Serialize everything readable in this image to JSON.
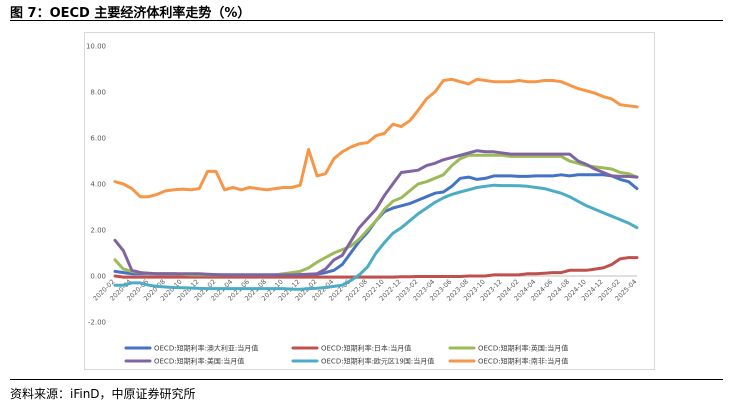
{
  "figure": {
    "title": "图 7：OECD 主要经济体利率走势（%）",
    "source": "资料来源：iFinD，中原证券研究所"
  },
  "chart_data": {
    "type": "line",
    "title": "",
    "xlabel": "",
    "ylabel": "",
    "ylim": [
      -2,
      10
    ],
    "yticks": [
      "-2.00",
      "0.00",
      "2.00",
      "4.00",
      "6.00",
      "8.00",
      "10.00"
    ],
    "grid": false,
    "legend_position": "bottom",
    "x": [
      "2020-02",
      "2020-03",
      "2020-04",
      "2020-05",
      "2020-06",
      "2020-07",
      "2020-08",
      "2020-09",
      "2020-10",
      "2020-11",
      "2020-12",
      "2021-01",
      "2021-02",
      "2021-03",
      "2021-04",
      "2021-05",
      "2021-06",
      "2021-07",
      "2021-08",
      "2021-09",
      "2021-10",
      "2021-11",
      "2021-12",
      "2022-01",
      "2022-02",
      "2022-03",
      "2022-04",
      "2022-05",
      "2022-06",
      "2022-07",
      "2022-08",
      "2022-09",
      "2022-10",
      "2022-11",
      "2022-12",
      "2023-01",
      "2023-02",
      "2023-03",
      "2023-04",
      "2023-05",
      "2023-06",
      "2023-07",
      "2023-08",
      "2023-09",
      "2023-10",
      "2023-11",
      "2023-12",
      "2024-01",
      "2024-02",
      "2024-03",
      "2024-04",
      "2024-05",
      "2024-06",
      "2024-07",
      "2024-08",
      "2024-09",
      "2024-10",
      "2024-11",
      "2024-12",
      "2025-01",
      "2025-02",
      "2025-03",
      "2025-04"
    ],
    "xtick_labels": [
      "2020-02",
      "2020-04",
      "2020-06",
      "2020-08",
      "2020-10",
      "2020-12",
      "2021-02",
      "2021-04",
      "2021-06",
      "2021-08",
      "2021-10",
      "2021-12",
      "2022-02",
      "2022-04",
      "2022-06",
      "2022-08",
      "2022-10",
      "2022-12",
      "2023-02",
      "2023-04",
      "2023-06",
      "2023-08",
      "2023-10",
      "2023-12",
      "2024-02",
      "2024-04",
      "2024-06",
      "2024-08",
      "2024-10",
      "2024-12",
      "2025-02",
      "2025-04"
    ],
    "series": [
      {
        "name": "OECD:短期利率:澳大利亚:当月值",
        "color": "#4472C4",
        "values": [
          0.2,
          0.15,
          0.1,
          0.1,
          0.1,
          0.1,
          0.1,
          0.1,
          0.08,
          0.06,
          0.05,
          0.05,
          0.05,
          0.05,
          0.05,
          0.05,
          0.05,
          0.05,
          0.05,
          0.05,
          0.05,
          0.05,
          0.06,
          0.07,
          0.08,
          0.15,
          0.25,
          0.5,
          1.0,
          1.5,
          1.9,
          2.4,
          2.8,
          2.95,
          3.05,
          3.15,
          3.3,
          3.45,
          3.6,
          3.65,
          3.9,
          4.25,
          4.3,
          4.2,
          4.25,
          4.35,
          4.35,
          4.35,
          4.33,
          4.33,
          4.35,
          4.35,
          4.35,
          4.4,
          4.35,
          4.4,
          4.4,
          4.4,
          4.4,
          4.35,
          4.2,
          4.1,
          3.8
        ]
      },
      {
        "name": "OECD:短期利率:日本:当月值",
        "color": "#C0504D",
        "values": [
          0.0,
          -0.05,
          -0.05,
          -0.05,
          -0.05,
          -0.05,
          -0.05,
          -0.05,
          -0.05,
          -0.05,
          -0.05,
          -0.05,
          -0.05,
          -0.05,
          -0.05,
          -0.05,
          -0.05,
          -0.05,
          -0.05,
          -0.05,
          -0.05,
          -0.05,
          -0.05,
          -0.05,
          -0.05,
          -0.05,
          -0.05,
          -0.05,
          -0.05,
          -0.05,
          -0.05,
          -0.05,
          -0.05,
          -0.05,
          -0.03,
          -0.03,
          -0.02,
          -0.02,
          -0.02,
          -0.02,
          -0.02,
          -0.02,
          0.0,
          0.0,
          0.0,
          0.05,
          0.05,
          0.05,
          0.05,
          0.1,
          0.1,
          0.12,
          0.15,
          0.15,
          0.25,
          0.25,
          0.25,
          0.3,
          0.35,
          0.5,
          0.75,
          0.8,
          0.8
        ]
      },
      {
        "name": "OECD:短期利率:英国:当月值",
        "color": "#9BBB59",
        "values": [
          0.7,
          0.3,
          0.2,
          0.15,
          0.1,
          0.1,
          0.1,
          0.1,
          0.08,
          0.05,
          0.05,
          0.05,
          0.05,
          0.05,
          0.05,
          0.05,
          0.05,
          0.05,
          0.05,
          0.05,
          0.1,
          0.15,
          0.2,
          0.35,
          0.6,
          0.8,
          1.0,
          1.15,
          1.3,
          1.6,
          2.0,
          2.4,
          2.9,
          3.25,
          3.4,
          3.7,
          4.0,
          4.1,
          4.25,
          4.4,
          4.8,
          5.1,
          5.25,
          5.25,
          5.25,
          5.25,
          5.25,
          5.2,
          5.2,
          5.2,
          5.2,
          5.2,
          5.2,
          5.2,
          5.0,
          4.9,
          4.8,
          4.75,
          4.7,
          4.65,
          4.5,
          4.45,
          4.3
        ]
      },
      {
        "name": "OECD:短期利率:美国:当月值",
        "color": "#8064A2",
        "values": [
          1.55,
          1.1,
          0.25,
          0.15,
          0.12,
          0.1,
          0.1,
          0.1,
          0.1,
          0.1,
          0.1,
          0.08,
          0.06,
          0.05,
          0.05,
          0.05,
          0.05,
          0.05,
          0.05,
          0.05,
          0.05,
          0.05,
          0.06,
          0.08,
          0.1,
          0.3,
          0.7,
          0.9,
          1.5,
          2.1,
          2.5,
          2.9,
          3.5,
          4.0,
          4.5,
          4.55,
          4.6,
          4.8,
          4.9,
          5.05,
          5.15,
          5.25,
          5.35,
          5.45,
          5.4,
          5.4,
          5.35,
          5.3,
          5.3,
          5.3,
          5.3,
          5.3,
          5.3,
          5.3,
          5.3,
          5.0,
          4.85,
          4.65,
          4.5,
          4.35,
          4.33,
          4.33,
          4.3
        ]
      },
      {
        "name": "OECD:短期利率:欧元区19国:当月值",
        "color": "#4BACC6",
        "values": [
          -0.4,
          -0.4,
          -0.3,
          -0.3,
          -0.4,
          -0.45,
          -0.48,
          -0.5,
          -0.51,
          -0.52,
          -0.54,
          -0.55,
          -0.55,
          -0.55,
          -0.55,
          -0.55,
          -0.55,
          -0.55,
          -0.55,
          -0.55,
          -0.55,
          -0.57,
          -0.58,
          -0.55,
          -0.53,
          -0.5,
          -0.45,
          -0.4,
          -0.2,
          0.05,
          0.4,
          1.0,
          1.45,
          1.85,
          2.1,
          2.4,
          2.7,
          2.95,
          3.2,
          3.4,
          3.55,
          3.65,
          3.75,
          3.85,
          3.9,
          3.95,
          3.93,
          3.93,
          3.92,
          3.9,
          3.85,
          3.8,
          3.7,
          3.6,
          3.45,
          3.25,
          3.05,
          2.9,
          2.75,
          2.6,
          2.45,
          2.3,
          2.1
        ]
      },
      {
        "name": "OECD:短期利率:南非:当月值",
        "color": "#F79646",
        "values": [
          4.1,
          4.0,
          3.8,
          3.45,
          3.45,
          3.55,
          3.7,
          3.75,
          3.78,
          3.75,
          3.8,
          4.55,
          4.55,
          3.75,
          3.85,
          3.75,
          3.85,
          3.8,
          3.75,
          3.8,
          3.85,
          3.85,
          3.95,
          5.5,
          4.35,
          4.45,
          5.1,
          5.4,
          5.6,
          5.75,
          5.8,
          6.1,
          6.2,
          6.6,
          6.5,
          6.75,
          7.2,
          7.7,
          8.0,
          8.5,
          8.55,
          8.45,
          8.35,
          8.55,
          8.5,
          8.45,
          8.45,
          8.45,
          8.5,
          8.45,
          8.45,
          8.5,
          8.5,
          8.45,
          8.3,
          8.15,
          8.05,
          7.95,
          7.8,
          7.7,
          7.45,
          7.4,
          7.35
        ]
      }
    ]
  }
}
